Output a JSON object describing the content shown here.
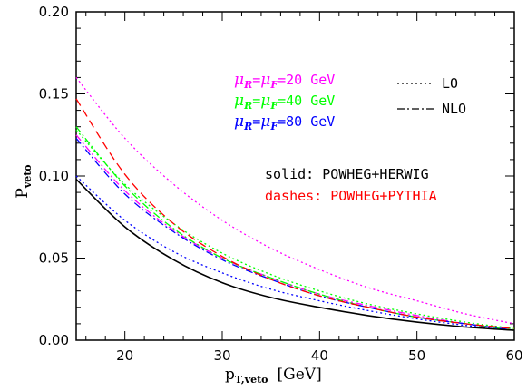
{
  "chart_data": {
    "type": "line",
    "x_range": [
      15,
      60
    ],
    "y_range": [
      0.0,
      0.2
    ],
    "x_ticks": [
      20,
      30,
      40,
      50,
      60
    ],
    "y_ticks": [
      0.0,
      0.05,
      0.1,
      0.15,
      0.2
    ],
    "x_tick_labels": [
      "20",
      "30",
      "40",
      "50",
      "60"
    ],
    "y_tick_labels": [
      "0.00",
      "0.05",
      "0.10",
      "0.15",
      "0.20"
    ],
    "xlabel": {
      "main": "p",
      "sub": "T,veto",
      "unit": "[GeV]"
    },
    "ylabel": {
      "main": "P",
      "sub": "veto"
    },
    "scale_legend": [
      {
        "greek1": "μ",
        "sub1": "R",
        "greek2": "μ",
        "sub2": "F",
        "value": "=20 GeV",
        "color": "#ff00ff"
      },
      {
        "greek1": "μ",
        "sub1": "R",
        "greek2": "μ",
        "sub2": "F",
        "value": "=40 GeV",
        "color": "#00ff00"
      },
      {
        "greek1": "μ",
        "sub1": "R",
        "greek2": "μ",
        "sub2": "F",
        "value": "=80 GeV",
        "color": "#0000ff"
      }
    ],
    "style_legend": [
      {
        "label": "LO",
        "dash": "dotted"
      },
      {
        "label": "NLO",
        "dash": "dashdot"
      }
    ],
    "method_legend": [
      {
        "label": "solid: POWHEG+HERWIG",
        "color": "#000000"
      },
      {
        "label": "dashes: POWHEG+PYTHIA",
        "color": "#ff0000"
      }
    ],
    "series": [
      {
        "id": "lo-20",
        "color": "#ff00ff",
        "style": "dotted",
        "x": [
          15,
          20,
          25,
          30,
          35,
          40,
          45,
          50,
          55,
          60
        ],
        "y": [
          0.16,
          0.123,
          0.095,
          0.073,
          0.056,
          0.043,
          0.032,
          0.024,
          0.016,
          0.01
        ]
      },
      {
        "id": "lo-40",
        "color": "#00ff00",
        "style": "dotted",
        "x": [
          15,
          20,
          25,
          30,
          35,
          40,
          45,
          50,
          55,
          60
        ],
        "y": [
          0.128,
          0.095,
          0.071,
          0.053,
          0.04,
          0.03,
          0.022,
          0.016,
          0.011,
          0.007
        ]
      },
      {
        "id": "lo-80",
        "color": "#0000ff",
        "style": "dotted",
        "x": [
          15,
          20,
          25,
          30,
          35,
          40,
          45,
          50,
          55,
          60
        ],
        "y": [
          0.1,
          0.073,
          0.054,
          0.041,
          0.031,
          0.024,
          0.018,
          0.013,
          0.009,
          0.006
        ]
      },
      {
        "id": "nlo-20",
        "color": "#ff00ff",
        "style": "dashdot",
        "x": [
          15,
          20,
          25,
          30,
          35,
          40,
          45,
          50,
          55,
          60
        ],
        "y": [
          0.125,
          0.091,
          0.067,
          0.05,
          0.038,
          0.028,
          0.021,
          0.015,
          0.01,
          0.006
        ]
      },
      {
        "id": "nlo-40",
        "color": "#00ff00",
        "style": "dashdot",
        "x": [
          15,
          20,
          25,
          30,
          35,
          40,
          45,
          50,
          55,
          60
        ],
        "y": [
          0.13,
          0.094,
          0.068,
          0.05,
          0.038,
          0.028,
          0.02,
          0.014,
          0.01,
          0.006
        ]
      },
      {
        "id": "nlo-80",
        "color": "#0000ff",
        "style": "dashdot",
        "x": [
          15,
          20,
          25,
          30,
          35,
          40,
          45,
          50,
          55,
          60
        ],
        "y": [
          0.123,
          0.089,
          0.066,
          0.049,
          0.037,
          0.027,
          0.02,
          0.014,
          0.01,
          0.006
        ]
      },
      {
        "id": "pythia",
        "color": "#ff0000",
        "style": "dashed",
        "x": [
          15,
          20,
          25,
          30,
          35,
          40,
          45,
          50,
          55,
          60
        ],
        "y": [
          0.147,
          0.101,
          0.071,
          0.051,
          0.037,
          0.027,
          0.02,
          0.014,
          0.01,
          0.007
        ]
      },
      {
        "id": "herwig",
        "color": "#000000",
        "style": "solid",
        "x": [
          15,
          20,
          25,
          30,
          35,
          40,
          45,
          50,
          55,
          60
        ],
        "y": [
          0.098,
          0.069,
          0.049,
          0.035,
          0.026,
          0.02,
          0.015,
          0.011,
          0.008,
          0.006
        ]
      }
    ]
  }
}
